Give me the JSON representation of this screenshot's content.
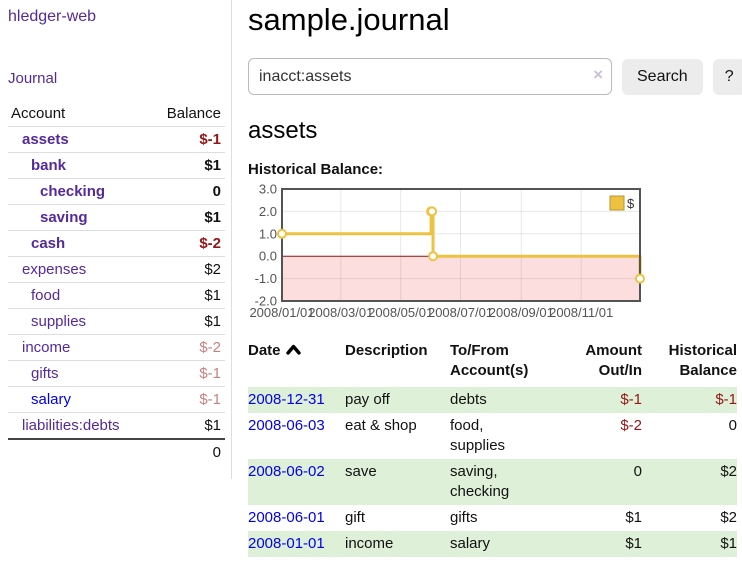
{
  "colors": {
    "link_purple": "#552a99",
    "link_blue": "#0000ee",
    "negative_strong": "#941616",
    "negative_soft": "#c9807f",
    "row_stripe_green": "#dff0d8",
    "chart_gold": "#edc240",
    "chart_negative_pink": "#fcdede",
    "chart_zero_line": "#8a1414",
    "chart_frame": "#545454"
  },
  "sidebar": {
    "app_title": "hledger-web",
    "nav": [
      {
        "label": "Journal"
      }
    ],
    "accounts": {
      "col_account": "Account",
      "col_balance": "Balance",
      "rows": [
        {
          "name": "assets",
          "balance": "$-1",
          "indent": 0,
          "emphasis": true
        },
        {
          "name": "bank",
          "balance": "$1",
          "indent": 1,
          "emphasis": true
        },
        {
          "name": "checking",
          "balance": "0",
          "indent": 2,
          "emphasis": true
        },
        {
          "name": "saving",
          "balance": "$1",
          "indent": 2,
          "emphasis": true
        },
        {
          "name": "cash",
          "balance": "$-2",
          "indent": 1,
          "emphasis": true
        },
        {
          "name": "expenses",
          "balance": "$2",
          "indent": 0,
          "emphasis": false
        },
        {
          "name": "food",
          "balance": "$1",
          "indent": 1,
          "emphasis": false
        },
        {
          "name": "supplies",
          "balance": "$1",
          "indent": 1,
          "emphasis": false
        },
        {
          "name": "income",
          "balance": "$-2",
          "indent": 0,
          "emphasis": false
        },
        {
          "name": "gifts",
          "balance": "$-1",
          "indent": 1,
          "emphasis": false
        },
        {
          "name": "salary",
          "balance": "$-1",
          "indent": 1,
          "emphasis": false,
          "link_color": "blue"
        },
        {
          "name": "liabilities:debts",
          "balance": "$1",
          "indent": 0,
          "emphasis": false
        }
      ],
      "total": "0"
    }
  },
  "main": {
    "title": "sample.journal",
    "search": {
      "value": "inacct:assets",
      "clear_label": "×",
      "button": "Search",
      "help": "?"
    },
    "heading": "assets",
    "chart_label": "Historical Balance:"
  },
  "chart_data": {
    "type": "line",
    "subtype": "step",
    "title": "Historical Balance",
    "series": [
      {
        "name": "$",
        "color": "#edc240",
        "points": [
          [
            "2008-01-01",
            1
          ],
          [
            "2008-06-01",
            2
          ],
          [
            "2008-06-02",
            2
          ],
          [
            "2008-06-03",
            0
          ],
          [
            "2008-12-31",
            -1
          ]
        ]
      }
    ],
    "xlim": [
      "2008-01-01",
      "2008-12-31"
    ],
    "ylim": [
      -2,
      3
    ],
    "x_ticks": [
      "2008/01/01",
      "2008/03/01",
      "2008/05/01",
      "2008/07/01",
      "2008/09/01",
      "2008/11/01"
    ],
    "y_ticks": [
      "3.0",
      "2.0",
      "1.0",
      "0.0",
      "-1.0",
      "-2.0"
    ],
    "legend": {
      "label": "$",
      "position": "top-right"
    },
    "grid": true,
    "negative_region": true
  },
  "register": {
    "headers": [
      {
        "label": "Date",
        "sort": "asc"
      },
      {
        "label": "Description"
      },
      {
        "label": "To/From Account(s)"
      },
      {
        "label": "Amount Out/In",
        "align": "right"
      },
      {
        "label": "Historical Balance",
        "align": "right"
      }
    ],
    "rows": [
      {
        "date": "2008-12-31",
        "description": "pay off",
        "accounts": "debts",
        "amount": "$-1",
        "balance": "$-1"
      },
      {
        "date": "2008-06-03",
        "description": "eat & shop",
        "accounts": "food, supplies",
        "amount": "$-2",
        "balance": "0"
      },
      {
        "date": "2008-06-02",
        "description": "save",
        "accounts": "saving, checking",
        "amount": "0",
        "balance": "$2"
      },
      {
        "date": "2008-06-01",
        "description": "gift",
        "accounts": "gifts",
        "amount": "$1",
        "balance": "$2"
      },
      {
        "date": "2008-01-01",
        "description": "income",
        "accounts": "salary",
        "amount": "$1",
        "balance": "$1"
      }
    ]
  }
}
